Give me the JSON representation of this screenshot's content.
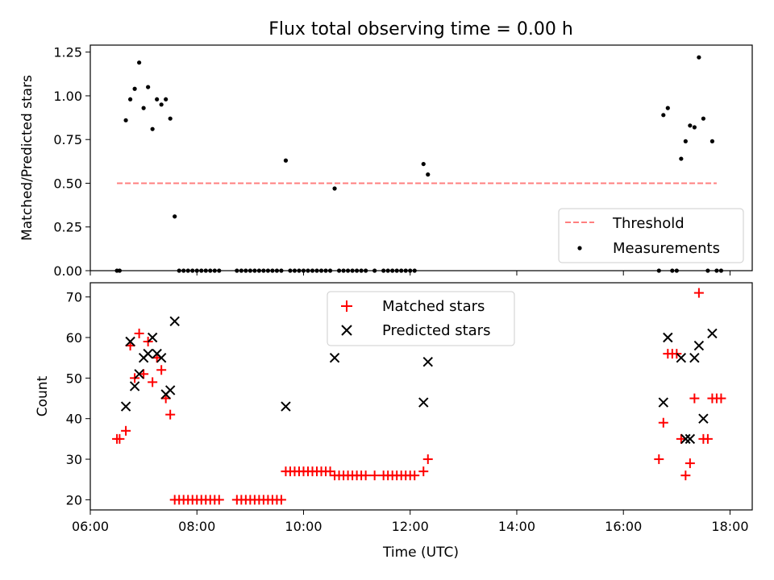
{
  "chart_data": [
    {
      "type": "scatter",
      "title": "Flux total observing time = 0.00 h",
      "xlabel": "",
      "ylabel": "Matched/Predicted stars",
      "xlim": [
        "06:00",
        "18:25"
      ],
      "ylim": [
        0,
        1.29
      ],
      "yticks": [
        "0.00",
        "0.25",
        "0.50",
        "0.75",
        "1.00",
        "1.25"
      ],
      "legend_position": "lower-right",
      "threshold": {
        "name": "Threshold",
        "value": 0.5,
        "x": [
          "06:30",
          "17:45"
        ],
        "color": "#ff7f7f"
      },
      "series": [
        {
          "name": "Measurements",
          "color": "#000000",
          "marker": "dot",
          "points": [
            [
              "06:30",
              0.0
            ],
            [
              "06:33",
              0.0
            ],
            [
              "06:40",
              0.86
            ],
            [
              "06:45",
              0.98
            ],
            [
              "06:50",
              1.04
            ],
            [
              "06:55",
              1.19
            ],
            [
              "07:00",
              0.93
            ],
            [
              "07:05",
              1.05
            ],
            [
              "07:10",
              0.81
            ],
            [
              "07:15",
              0.98
            ],
            [
              "07:20",
              0.95
            ],
            [
              "07:25",
              0.98
            ],
            [
              "07:30",
              0.87
            ],
            [
              "07:35",
              0.31
            ],
            [
              "07:40",
              0.0
            ],
            [
              "07:45",
              0.0
            ],
            [
              "07:50",
              0.0
            ],
            [
              "07:55",
              0.0
            ],
            [
              "08:00",
              0.0
            ],
            [
              "08:05",
              0.0
            ],
            [
              "08:10",
              0.0
            ],
            [
              "08:15",
              0.0
            ],
            [
              "08:20",
              0.0
            ],
            [
              "08:25",
              0.0
            ],
            [
              "08:45",
              0.0
            ],
            [
              "08:50",
              0.0
            ],
            [
              "08:55",
              0.0
            ],
            [
              "09:00",
              0.0
            ],
            [
              "09:05",
              0.0
            ],
            [
              "09:10",
              0.0
            ],
            [
              "09:15",
              0.0
            ],
            [
              "09:20",
              0.0
            ],
            [
              "09:25",
              0.0
            ],
            [
              "09:30",
              0.0
            ],
            [
              "09:35",
              0.0
            ],
            [
              "09:40",
              0.63
            ],
            [
              "09:45",
              0.0
            ],
            [
              "09:50",
              0.0
            ],
            [
              "09:55",
              0.0
            ],
            [
              "10:00",
              0.0
            ],
            [
              "10:05",
              0.0
            ],
            [
              "10:10",
              0.0
            ],
            [
              "10:15",
              0.0
            ],
            [
              "10:20",
              0.0
            ],
            [
              "10:25",
              0.0
            ],
            [
              "10:30",
              0.0
            ],
            [
              "10:35",
              0.47
            ],
            [
              "10:40",
              0.0
            ],
            [
              "10:45",
              0.0
            ],
            [
              "10:50",
              0.0
            ],
            [
              "10:55",
              0.0
            ],
            [
              "11:00",
              0.0
            ],
            [
              "11:05",
              0.0
            ],
            [
              "11:10",
              0.0
            ],
            [
              "11:20",
              0.0
            ],
            [
              "11:30",
              0.0
            ],
            [
              "11:35",
              0.0
            ],
            [
              "11:40",
              0.0
            ],
            [
              "11:45",
              0.0
            ],
            [
              "11:50",
              0.0
            ],
            [
              "11:55",
              0.0
            ],
            [
              "12:00",
              0.0
            ],
            [
              "12:05",
              0.0
            ],
            [
              "12:15",
              0.61
            ],
            [
              "12:20",
              0.55
            ],
            [
              "16:40",
              0.0
            ],
            [
              "16:45",
              0.89
            ],
            [
              "16:50",
              0.93
            ],
            [
              "16:55",
              0.0
            ],
            [
              "17:00",
              0.0
            ],
            [
              "17:05",
              0.64
            ],
            [
              "17:10",
              0.74
            ],
            [
              "17:15",
              0.83
            ],
            [
              "17:20",
              0.82
            ],
            [
              "17:25",
              1.22
            ],
            [
              "17:30",
              0.87
            ],
            [
              "17:35",
              0.0
            ],
            [
              "17:40",
              0.74
            ],
            [
              "17:45",
              0.0
            ],
            [
              "17:50",
              0.0
            ]
          ]
        }
      ]
    },
    {
      "type": "scatter",
      "title": "",
      "xlabel": "Time (UTC)",
      "ylabel": "Count",
      "xlim": [
        "06:00",
        "18:25"
      ],
      "ylim": [
        17.5,
        73.5
      ],
      "yticks": [
        "20",
        "30",
        "40",
        "50",
        "60",
        "70"
      ],
      "xticks": [
        "06:00",
        "08:00",
        "10:00",
        "12:00",
        "14:00",
        "16:00",
        "18:00"
      ],
      "legend_position": "top-center",
      "series": [
        {
          "name": "Matched stars",
          "color": "#ff0000",
          "marker": "plus",
          "points": [
            [
              "06:30",
              35
            ],
            [
              "06:33",
              35
            ],
            [
              "06:40",
              37
            ],
            [
              "06:45",
              58
            ],
            [
              "06:50",
              50
            ],
            [
              "06:55",
              61
            ],
            [
              "07:00",
              51
            ],
            [
              "07:05",
              59
            ],
            [
              "07:10",
              49
            ],
            [
              "07:15",
              55
            ],
            [
              "07:20",
              52
            ],
            [
              "07:25",
              45
            ],
            [
              "07:30",
              41
            ],
            [
              "07:35",
              20
            ],
            [
              "07:40",
              20
            ],
            [
              "07:45",
              20
            ],
            [
              "07:50",
              20
            ],
            [
              "07:55",
              20
            ],
            [
              "08:00",
              20
            ],
            [
              "08:05",
              20
            ],
            [
              "08:10",
              20
            ],
            [
              "08:15",
              20
            ],
            [
              "08:20",
              20
            ],
            [
              "08:25",
              20
            ],
            [
              "08:45",
              20
            ],
            [
              "08:50",
              20
            ],
            [
              "08:55",
              20
            ],
            [
              "09:00",
              20
            ],
            [
              "09:05",
              20
            ],
            [
              "09:10",
              20
            ],
            [
              "09:15",
              20
            ],
            [
              "09:20",
              20
            ],
            [
              "09:25",
              20
            ],
            [
              "09:30",
              20
            ],
            [
              "09:35",
              20
            ],
            [
              "09:40",
              27
            ],
            [
              "09:45",
              27
            ],
            [
              "09:50",
              27
            ],
            [
              "09:55",
              27
            ],
            [
              "10:00",
              27
            ],
            [
              "10:05",
              27
            ],
            [
              "10:10",
              27
            ],
            [
              "10:15",
              27
            ],
            [
              "10:20",
              27
            ],
            [
              "10:25",
              27
            ],
            [
              "10:30",
              27
            ],
            [
              "10:35",
              26
            ],
            [
              "10:40",
              26
            ],
            [
              "10:45",
              26
            ],
            [
              "10:50",
              26
            ],
            [
              "10:55",
              26
            ],
            [
              "11:00",
              26
            ],
            [
              "11:05",
              26
            ],
            [
              "11:10",
              26
            ],
            [
              "11:20",
              26
            ],
            [
              "11:30",
              26
            ],
            [
              "11:35",
              26
            ],
            [
              "11:40",
              26
            ],
            [
              "11:45",
              26
            ],
            [
              "11:50",
              26
            ],
            [
              "11:55",
              26
            ],
            [
              "12:00",
              26
            ],
            [
              "12:05",
              26
            ],
            [
              "12:15",
              27
            ],
            [
              "12:20",
              30
            ],
            [
              "16:40",
              30
            ],
            [
              "16:45",
              39
            ],
            [
              "16:50",
              56
            ],
            [
              "16:55",
              56
            ],
            [
              "17:00",
              56
            ],
            [
              "17:05",
              35
            ],
            [
              "17:10",
              26
            ],
            [
              "17:15",
              29
            ],
            [
              "17:20",
              45
            ],
            [
              "17:25",
              71
            ],
            [
              "17:30",
              35
            ],
            [
              "17:35",
              35
            ],
            [
              "17:40",
              45
            ],
            [
              "17:45",
              45
            ],
            [
              "17:50",
              45
            ]
          ]
        },
        {
          "name": "Predicted stars",
          "color": "#000000",
          "marker": "x",
          "points": [
            [
              "06:40",
              43
            ],
            [
              "06:45",
              59
            ],
            [
              "06:50",
              48
            ],
            [
              "06:55",
              51
            ],
            [
              "07:00",
              55
            ],
            [
              "07:05",
              56
            ],
            [
              "07:10",
              60
            ],
            [
              "07:15",
              56
            ],
            [
              "07:20",
              55
            ],
            [
              "07:25",
              46
            ],
            [
              "07:30",
              47
            ],
            [
              "07:35",
              64
            ],
            [
              "09:40",
              43
            ],
            [
              "10:35",
              55
            ],
            [
              "12:15",
              44
            ],
            [
              "12:20",
              54
            ],
            [
              "16:45",
              44
            ],
            [
              "16:50",
              60
            ],
            [
              "17:05",
              55
            ],
            [
              "17:10",
              35
            ],
            [
              "17:15",
              35
            ],
            [
              "17:20",
              55
            ],
            [
              "17:25",
              58
            ],
            [
              "17:30",
              40
            ],
            [
              "17:40",
              61
            ]
          ]
        }
      ]
    }
  ]
}
